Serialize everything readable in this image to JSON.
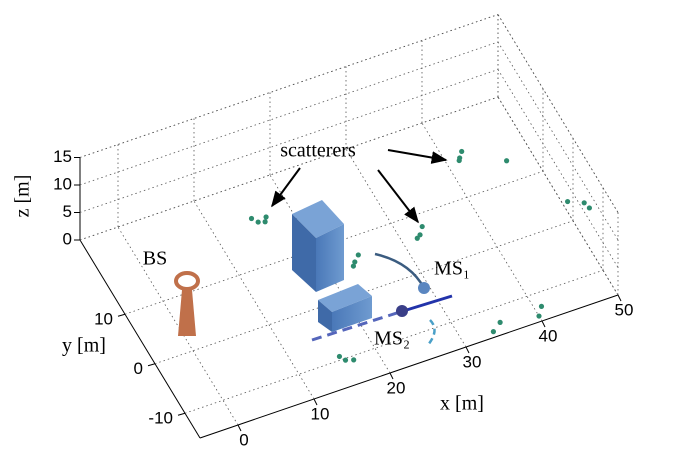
{
  "chart_data": {
    "type": "scatter3d",
    "xlabel": "x [m]",
    "ylabel": "y [m]",
    "zlabel": "z [m]",
    "xlim": [
      -5,
      50
    ],
    "ylim": [
      -15,
      25
    ],
    "zlim": [
      0,
      15
    ],
    "xticks": [
      0,
      10,
      20,
      30,
      40,
      50
    ],
    "yticks": [
      -10,
      0,
      10
    ],
    "zticks": [
      0,
      5,
      10,
      15
    ],
    "grid": true,
    "annotations": [
      "scatterers",
      "BS",
      "MS₁",
      "MS₂"
    ],
    "series": [
      {
        "name": "scatterers",
        "color": "#2e8b6e",
        "x": [
          15.6,
          16.2,
          15.0,
          16.8,
          41.8,
          42.3,
          41.5,
          32.4,
          33.0,
          31.8,
          23.5,
          24.2,
          23.0,
          16.0,
          16.8,
          15.4,
          34.0,
          35.2,
          40.0,
          40.8,
          49.0,
          49.5,
          48.5,
          46.0
        ],
        "y": [
          17.8,
          17.0,
          18.5,
          18.2,
          17.0,
          17.6,
          16.4,
          6.4,
          7.2,
          5.8,
          5.6,
          6.2,
          4.8,
          -10.3,
          -11.0,
          -9.8,
          -14.0,
          -13.2,
          -14.0,
          -12.8,
          -8.0,
          -5.0,
          -2.0,
          12.0
        ],
        "z": [
          0,
          0.5,
          0.3,
          0,
          0,
          0.4,
          0.2,
          0,
          0.5,
          0.2,
          0,
          0.4,
          0.2,
          0,
          0.3,
          0.5,
          0,
          0.4,
          0,
          0.3,
          10,
          8,
          6,
          2
        ]
      }
    ]
  }
}
